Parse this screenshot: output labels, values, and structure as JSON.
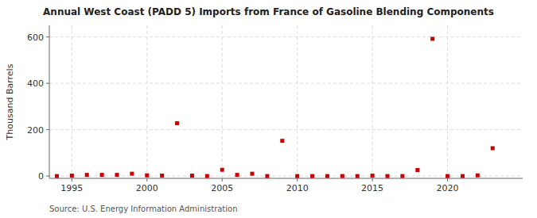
{
  "chart_data": {
    "type": "scatter",
    "title": "Annual West Coast (PADD 5) Imports from France of Gasoline Blending Components",
    "ylabel": "Thousand Barrels",
    "annotations": [
      "Source: U.S. Energy Information Administration"
    ],
    "x": [
      1994,
      1995,
      1996,
      1997,
      1998,
      1999,
      2000,
      2001,
      2002,
      2003,
      2004,
      2005,
      2006,
      2007,
      2008,
      2009,
      2010,
      2011,
      2012,
      2013,
      2014,
      2015,
      2016,
      2017,
      2018,
      2019,
      2020,
      2021,
      2022,
      2023
    ],
    "values": [
      0,
      2,
      5,
      5,
      5,
      10,
      3,
      2,
      228,
      2,
      0,
      27,
      5,
      10,
      0,
      152,
      0,
      0,
      0,
      0,
      0,
      2,
      0,
      0,
      26,
      592,
      0,
      0,
      3,
      120
    ],
    "color": "#cc0000",
    "marker": "square",
    "xlim": [
      1993.5,
      2025
    ],
    "ylim": [
      -10,
      650
    ],
    "xticks": [
      1995,
      2000,
      2005,
      2010,
      2015,
      2020
    ],
    "yticks": [
      0,
      200,
      400,
      600
    ],
    "grid": true
  }
}
